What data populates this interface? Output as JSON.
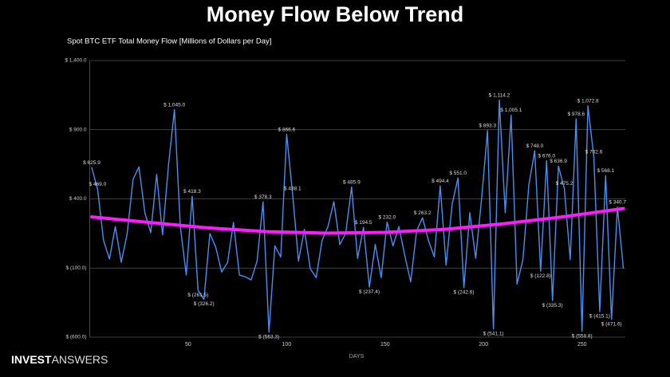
{
  "header": {
    "title": "Money Flow Below Trend"
  },
  "logo": [
    "INVEST",
    "ANSWERS"
  ],
  "chart_data": {
    "type": "line",
    "title": "Spot BTC ETF Total Money Flow [Millions of Dollars per Day]",
    "x_label": "DAYS",
    "xlim": [
      0,
      272
    ],
    "xticks": [
      50,
      100,
      150,
      200,
      250
    ],
    "ylim": [
      -600,
      1400
    ],
    "yticks": [
      {
        "value": -600,
        "label": "$ (600.0)"
      },
      {
        "value": -100,
        "label": "$ (100.0)"
      },
      {
        "value": 400,
        "label": "$ 400.0"
      },
      {
        "value": 900,
        "label": "$ 900.0"
      },
      {
        "value": 1400,
        "label": "$ 1,400.0"
      }
    ],
    "grid": true,
    "series": [
      {
        "color": "#4a8ff0",
        "x": [
          1,
          4,
          7,
          10,
          13,
          16,
          19,
          22,
          25,
          28,
          31,
          34,
          37,
          40,
          43,
          46,
          49,
          52,
          55,
          58,
          61,
          64,
          67,
          70,
          73,
          76,
          79,
          82,
          85,
          88,
          91,
          94,
          97,
          100,
          103,
          106,
          109,
          112,
          115,
          118,
          121,
          124,
          127,
          130,
          133,
          136,
          139,
          142,
          145,
          148,
          151,
          154,
          157,
          160,
          163,
          166,
          169,
          172,
          175,
          178,
          181,
          184,
          187,
          190,
          193,
          196,
          199,
          202,
          205,
          208,
          211,
          214,
          217,
          220,
          223,
          226,
          229,
          232,
          235,
          238,
          241,
          244,
          247,
          250,
          253,
          256,
          259,
          262,
          265,
          268,
          271
        ],
        "values": [
          625.9,
          469,
          100,
          -35,
          200,
          -58,
          146,
          541,
          631,
          300,
          155,
          577,
          140,
          648,
          1045,
          200,
          -150,
          418.3,
          -261.5,
          -326.2,
          150,
          50,
          -129,
          -60,
          230,
          -150,
          -164,
          -186,
          -50,
          378.3,
          -563.3,
          60,
          -20,
          866.6,
          438.1,
          -50,
          180,
          -105,
          -170,
          100,
          200,
          380,
          70,
          150,
          485.9,
          -30,
          194.5,
          -237.4,
          70,
          -170,
          232,
          60,
          200,
          -10,
          -200,
          168,
          263.2,
          100,
          -20,
          494.4,
          -80,
          360,
          551,
          -242.6,
          300,
          -30,
          402,
          893.3,
          -541.1,
          1114.2,
          300,
          1005.1,
          -216,
          -40,
          500,
          748,
          -122.8,
          676,
          -335.3,
          636.9,
          475.2,
          -40,
          978.6,
          -558.8,
          1072.8,
          702.6,
          -415.1,
          568.1,
          -471.6,
          340.7,
          -100
        ],
        "value_labels": [
          "$ 625.9",
          "$ 469.0",
          null,
          null,
          null,
          null,
          null,
          null,
          null,
          null,
          null,
          null,
          null,
          null,
          "$ 1,045.0",
          null,
          null,
          "$ 418.3",
          "$ (261.5)",
          "$ (326.2)",
          null,
          null,
          null,
          null,
          null,
          null,
          null,
          null,
          null,
          "$ 378.3",
          "$ (563.3)",
          null,
          null,
          "$ 866.6",
          "$ 438.1",
          null,
          null,
          null,
          null,
          null,
          null,
          null,
          null,
          null,
          "$ 485.9",
          null,
          "$ 194.5",
          "$ (237.4)",
          null,
          null,
          "$ 232.0",
          null,
          null,
          null,
          null,
          null,
          "$ 263.2",
          null,
          null,
          "$ 494.4",
          null,
          null,
          "$ 551.0",
          "$ (242.6)",
          null,
          null,
          null,
          "$ 893.3",
          "$ (541.1)",
          "$ 1,114.2",
          null,
          "$ 1,005.1",
          null,
          null,
          null,
          "$ 748.0",
          "$ (122.8)",
          "$ 676.0",
          "$ (335.3)",
          "$ 636.9",
          "$ 475.2",
          null,
          "$ 978.6",
          "$ (558.8)",
          "$ 1,072.8",
          "$ 702.6",
          "$ (415.1)",
          "$ 568.1",
          "$ (471.6)",
          "$ 340.7",
          null
        ]
      },
      {
        "color": "#ff1aff",
        "x": [
          1,
          30,
          60,
          90,
          120,
          150,
          180,
          210,
          240,
          271
        ],
        "values": [
          270,
          230,
          190,
          163,
          152,
          158,
          180,
          220,
          270,
          330
        ]
      }
    ]
  }
}
